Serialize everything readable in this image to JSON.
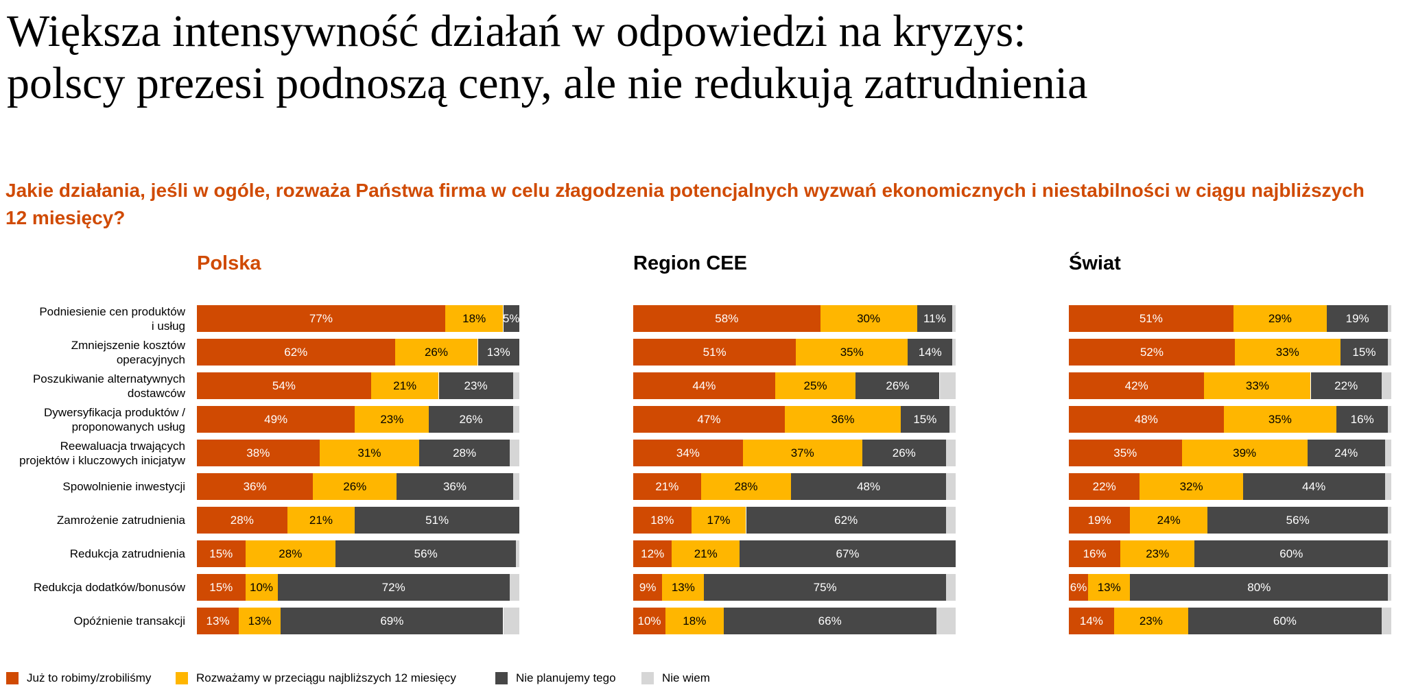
{
  "title": {
    "line1": "Większa intensywność działań w odpowiedzi na kryzys:",
    "line2": "polscy prezesi podnoszą ceny, ale nie redukują zatrudnienia"
  },
  "question": "Jakie działania, jeśli w ogóle, rozważa Państwa firma w celu złagodzenia potencjalnych wyzwań ekonomicznych i niestabilności w ciągu najbliższych 12 miesięcy?",
  "colors": {
    "done": "#D04A02",
    "considering": "#FFB600",
    "not_planned": "#474747",
    "dont_know": "#D6D6D6",
    "accent": "#D04A02"
  },
  "chart_data": {
    "type": "bar",
    "stacked": true,
    "orientation": "horizontal",
    "categories": [
      "Podniesienie cen produktów\ni usług",
      "Zmniejszenie kosztów\noperacyjnych",
      "Poszukiwanie alternatywnych\ndostawców",
      "Dywersyfikacja produktów /\nproponowanych usług",
      "Reewaluacja trwających\nprojektów i kluczowych inicjatyw",
      "Spowolnienie inwestycji",
      "Zamrożenie zatrudnienia",
      "Redukcja zatrudnienia",
      "Redukcja dodatków/bonusów",
      "Opóźnienie transakcji"
    ],
    "legend": [
      "Już to robimy/zrobiliśmy",
      "Rozważamy w przeciągu najbliższych 12 miesięcy",
      "Nie planujemy tego",
      "Nie wiem"
    ],
    "legend_position": "bottom",
    "panels": [
      {
        "title": "Polska",
        "series": [
          {
            "name": "Już to robimy/zrobiliśmy",
            "values": [
              77,
              62,
              54,
              49,
              38,
              36,
              28,
              15,
              15,
              13
            ]
          },
          {
            "name": "Rozważamy w przeciągu najbliższych 12 miesięcy",
            "values": [
              18,
              26,
              21,
              23,
              31,
              26,
              21,
              28,
              10,
              13
            ]
          },
          {
            "name": "Nie planujemy tego",
            "values": [
              5,
              13,
              23,
              26,
              28,
              36,
              51,
              56,
              72,
              69
            ]
          },
          {
            "name": "Nie wiem",
            "values": [
              0,
              0,
              2,
              2,
              3,
              2,
              0,
              1,
              3,
              5
            ]
          }
        ]
      },
      {
        "title": "Region CEE",
        "series": [
          {
            "name": "Już to robimy/zrobiliśmy",
            "values": [
              58,
              51,
              44,
              47,
              34,
              21,
              18,
              12,
              9,
              10
            ]
          },
          {
            "name": "Rozważamy w przeciągu najbliższych 12 miesięcy",
            "values": [
              30,
              35,
              25,
              36,
              37,
              28,
              17,
              21,
              13,
              18
            ]
          },
          {
            "name": "Nie planujemy tego",
            "values": [
              11,
              14,
              26,
              15,
              26,
              48,
              62,
              67,
              75,
              66
            ]
          },
          {
            "name": "Nie wiem",
            "values": [
              1,
              1,
              5,
              2,
              3,
              3,
              3,
              0,
              3,
              6
            ]
          }
        ]
      },
      {
        "title": "Świat",
        "series": [
          {
            "name": "Już to robimy/zrobiliśmy",
            "values": [
              51,
              52,
              42,
              48,
              35,
              22,
              19,
              16,
              6,
              14
            ]
          },
          {
            "name": "Rozważamy w przeciągu najbliższych 12 miesięcy",
            "values": [
              29,
              33,
              33,
              35,
              39,
              32,
              24,
              23,
              13,
              23
            ]
          },
          {
            "name": "Nie planujemy tego",
            "values": [
              19,
              15,
              22,
              16,
              24,
              44,
              56,
              60,
              80,
              60
            ]
          },
          {
            "name": "Nie wiem",
            "values": [
              1,
              1,
              3,
              1,
              2,
              2,
              1,
              1,
              1,
              3
            ]
          }
        ]
      }
    ]
  }
}
